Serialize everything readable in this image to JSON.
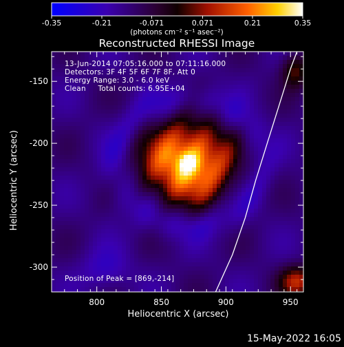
{
  "chart_data": {
    "type": "heatmap",
    "title": "Reconstructed RHESSI Image",
    "xlabel": "Heliocentric X (arcsec)",
    "ylabel": "Heliocentric Y (arcsec)",
    "xlim": [
      765,
      960
    ],
    "ylim": [
      -320,
      -126
    ],
    "xticks": [
      800,
      850,
      900,
      950
    ],
    "yticks": [
      -150,
      -200,
      -250,
      -300
    ],
    "colorbar": {
      "ticks": [
        -0.35,
        -0.21,
        -0.071,
        0.071,
        0.21,
        0.35
      ],
      "tick_labels": [
        "-0.35",
        "-0.21",
        "-0.071",
        "0.071",
        "0.21",
        "0.35"
      ],
      "range": [
        -0.35,
        0.35
      ],
      "units": "(photons cm⁻² s⁻¹ asec⁻²)"
    },
    "annotations": [
      "13-Jun-2014 07:05:16.000 to 07:11:16.000",
      "Detectors: 3F 4F 5F 6F 7F 8F, Att 0",
      "Energy Range: 3.0 - 6.0 keV",
      "Clean     Total counts: 6.95E+04",
      "Position of Peak = [869,-214]"
    ],
    "peak": [
      869,
      -214
    ],
    "limb_curve": [
      [
        892,
        -320
      ],
      [
        905,
        -290
      ],
      [
        915,
        -260
      ],
      [
        923,
        -230
      ],
      [
        932,
        -200
      ],
      [
        941,
        -170
      ],
      [
        950,
        -140
      ],
      [
        955,
        -126
      ]
    ],
    "footer": "15-May-2022 16:05",
    "colors": {
      "low": "#0000ff",
      "mid": "#000000",
      "high": "#ffffff",
      "limb": "#ffffff"
    }
  }
}
